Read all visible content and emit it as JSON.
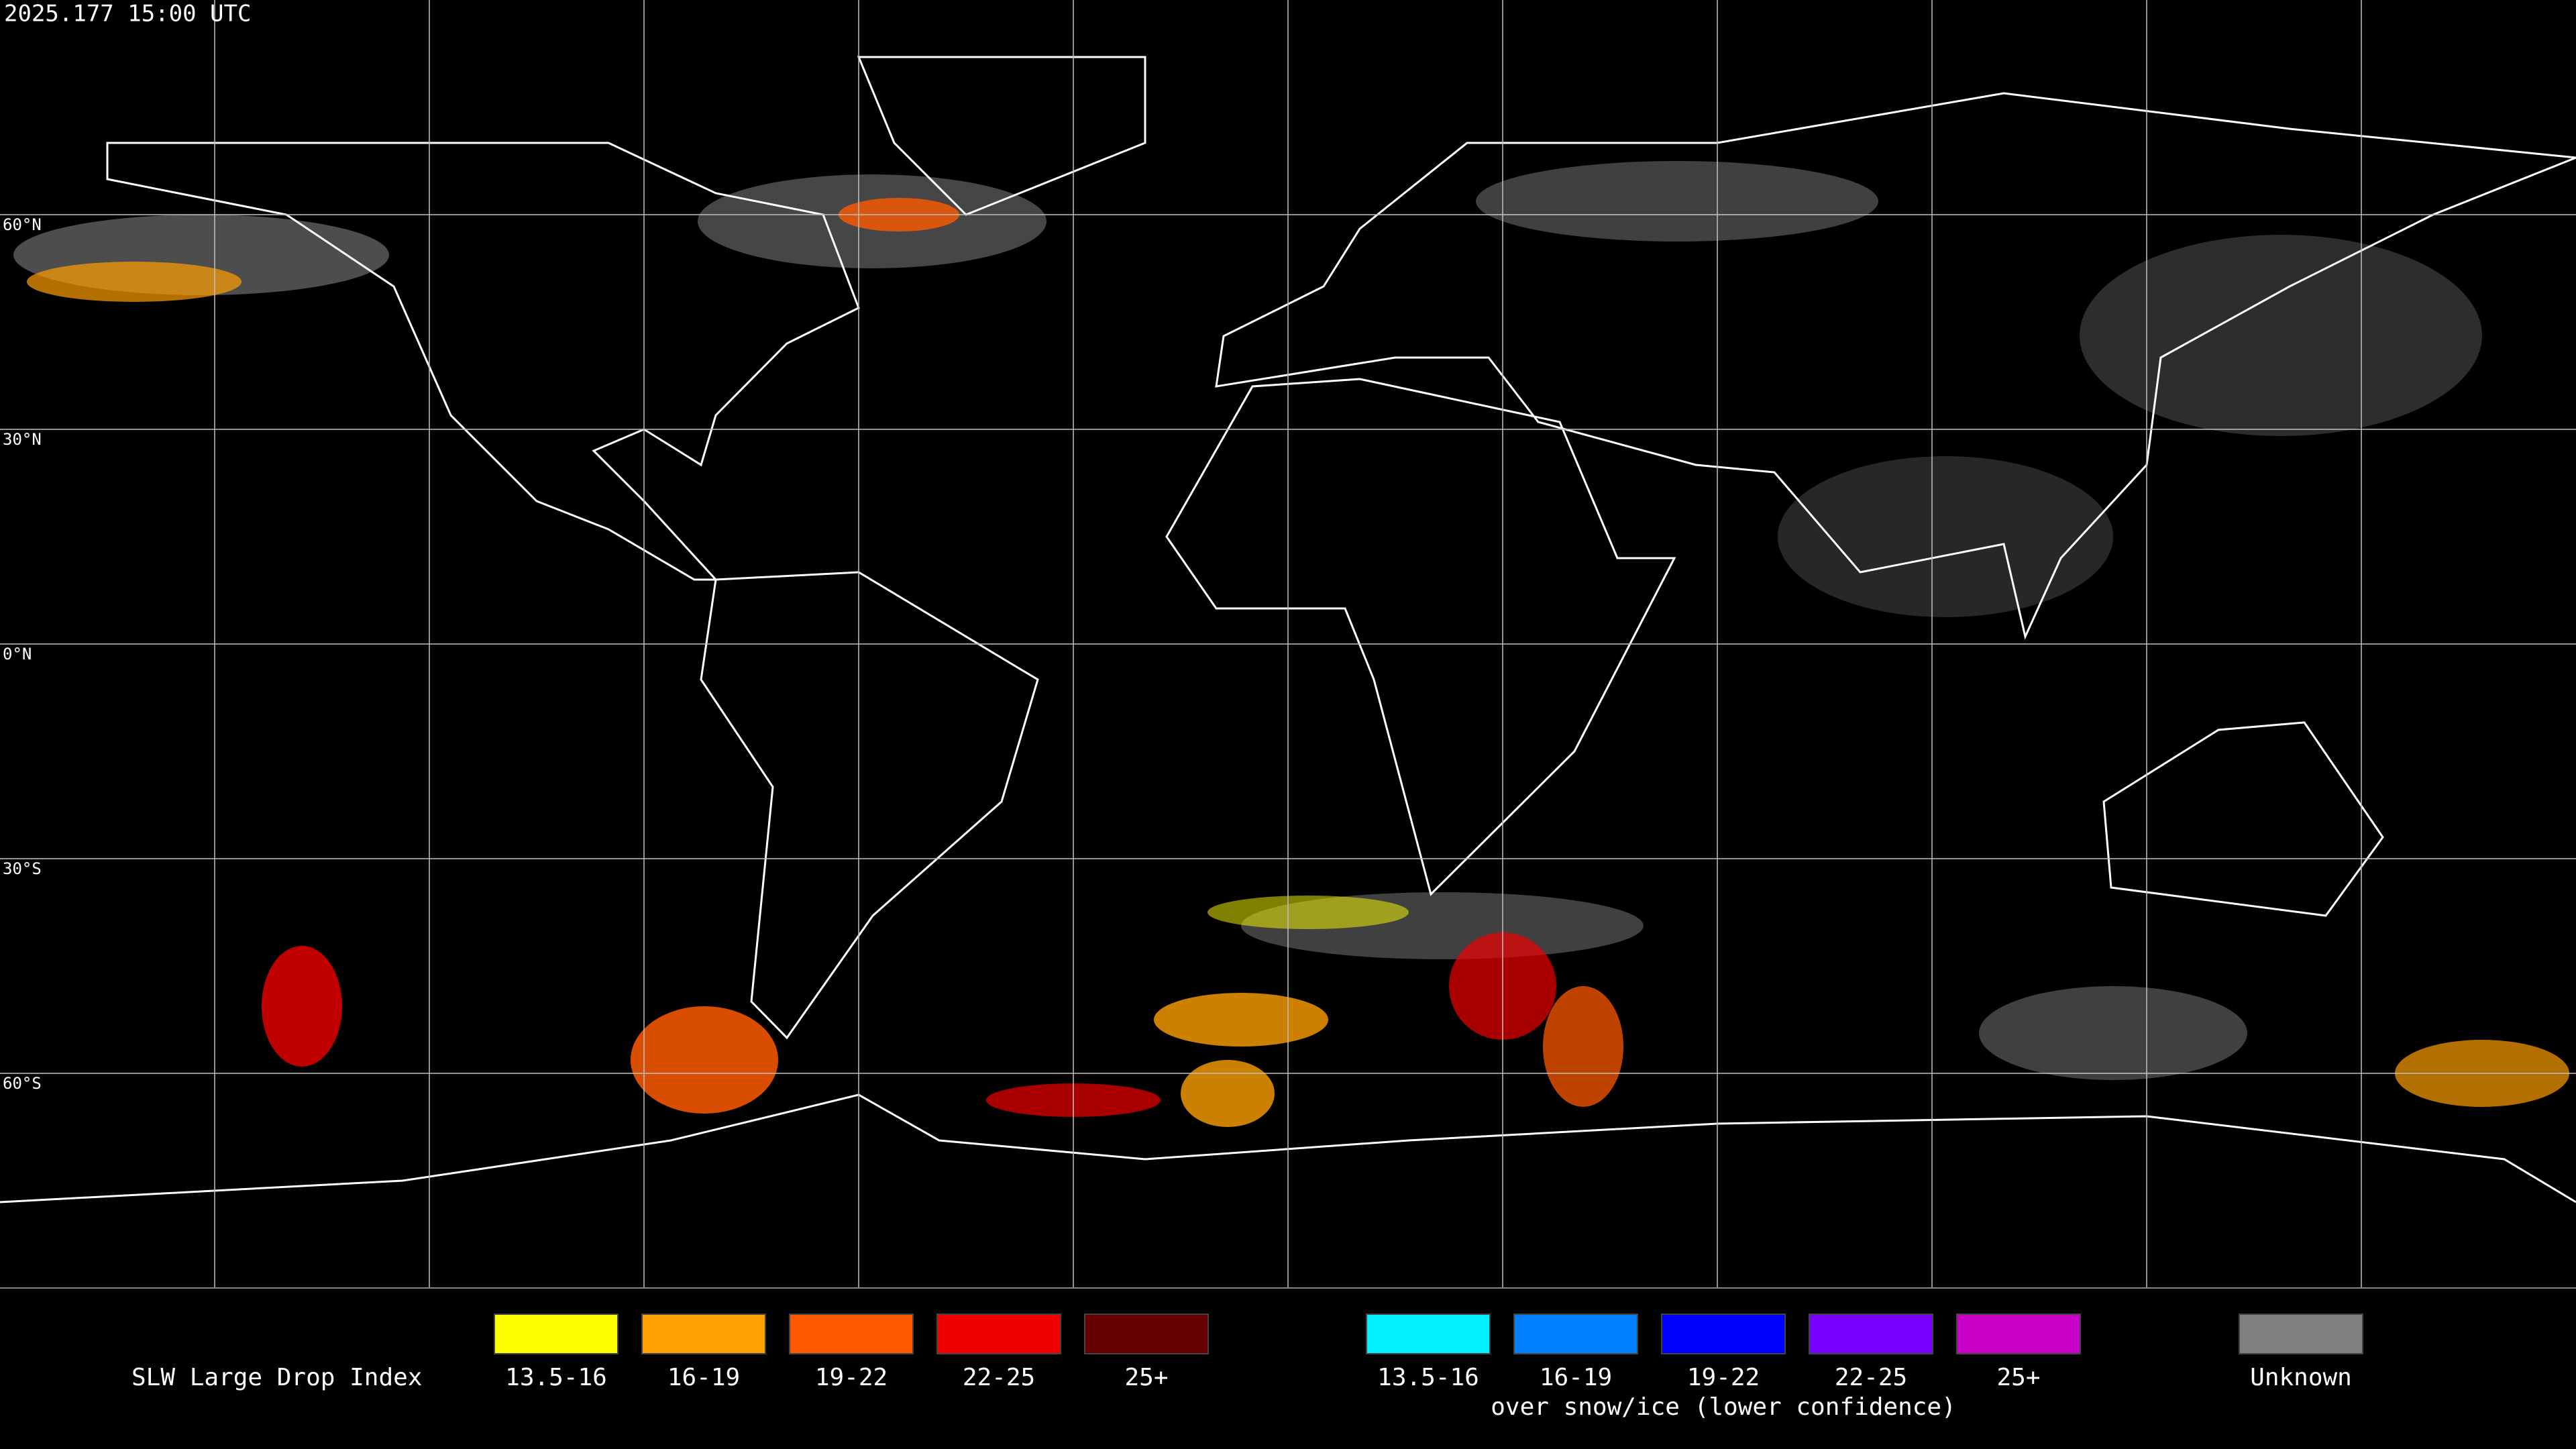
{
  "header": {
    "timestamp": "2025.177 15:00 UTC"
  },
  "map": {
    "latitude_labels": [
      "60°N",
      "30°N",
      "0°N",
      "30°S",
      "60°S"
    ]
  },
  "legend": {
    "title": "SLW Large Drop Index",
    "groups": [
      {
        "items": [
          {
            "label": "13.5-16",
            "color": "#ffff00"
          },
          {
            "label": "16-19",
            "color": "#ffa000"
          },
          {
            "label": "19-22",
            "color": "#ff5a00"
          },
          {
            "label": "22-25",
            "color": "#f00000"
          },
          {
            "label": "25+",
            "color": "#640000"
          }
        ]
      },
      {
        "items": [
          {
            "label": "13.5-16",
            "color": "#00f0ff"
          },
          {
            "label": "16-19",
            "color": "#0080ff"
          },
          {
            "label": "19-22",
            "color": "#0000ff"
          },
          {
            "label": "22-25",
            "color": "#7800ff"
          },
          {
            "label": "25+",
            "color": "#c800c8"
          }
        ],
        "note": "over snow/ice (lower confidence)"
      },
      {
        "items": [
          {
            "label": "Unknown",
            "color": "#808080"
          }
        ]
      }
    ]
  }
}
